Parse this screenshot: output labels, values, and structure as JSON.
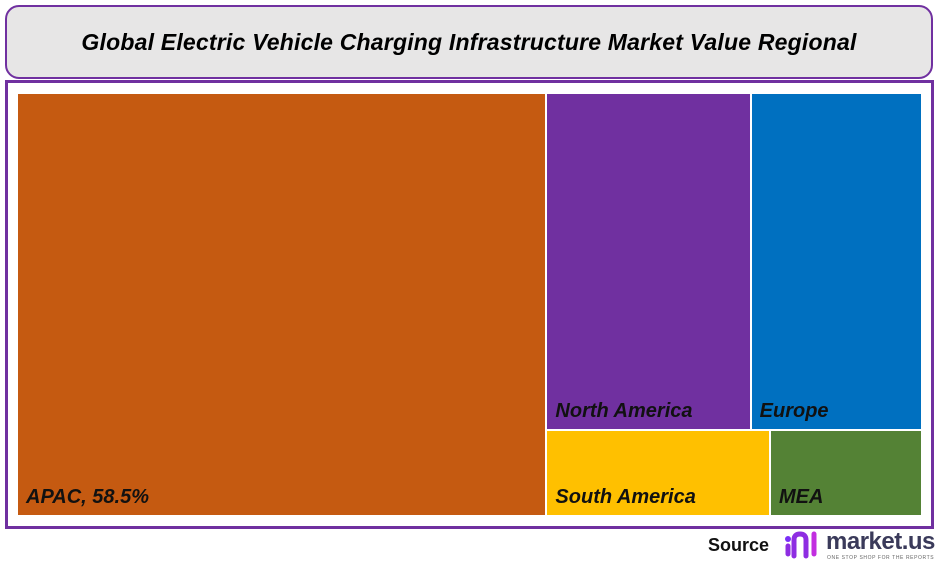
{
  "chart_data": {
    "type": "treemap",
    "title": "Global Electric Vehicle Charging Infrastructure Market Value Regional",
    "unit": "%",
    "items": [
      {
        "name": "APAC",
        "label": "APAC, 58.5%",
        "value": 58.5,
        "color": "#C55A11"
      },
      {
        "name": "North America",
        "label": "North America",
        "value": 18.0,
        "color": "#7030A0"
      },
      {
        "name": "Europe",
        "label": "Europe",
        "value": 15.1,
        "color": "#0070C0"
      },
      {
        "name": "South America",
        "label": "South America",
        "value": 5.0,
        "color": "#FFC000"
      },
      {
        "name": "MEA",
        "label": "MEA",
        "value": 3.4,
        "color": "#548235"
      }
    ]
  },
  "footer": {
    "source_label": "Source",
    "logo_text": "market.us",
    "logo_tagline": "ONE STOP SHOP FOR THE REPORTS"
  },
  "colors": {
    "frame": "#7030A0",
    "title_bg": "#E7E6E6"
  }
}
